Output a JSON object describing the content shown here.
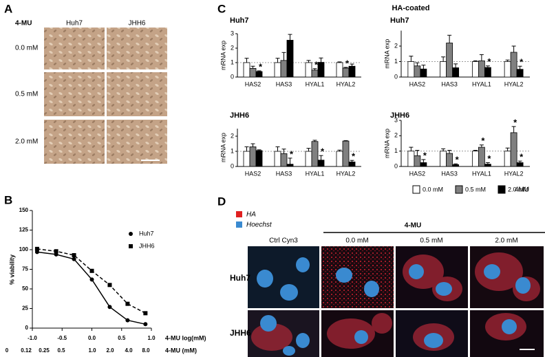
{
  "panel_labels": [
    "A",
    "B",
    "C",
    "D"
  ],
  "panel_a": {
    "treatment": "4-MU",
    "columns": [
      "Huh7",
      "JHH6"
    ],
    "rows": [
      "0.0 mM",
      "0.5 mM",
      "2.0 mM"
    ]
  },
  "chart_data": [
    {
      "type": "line",
      "ylabel": "% viability",
      "xlabel": "4-MU log(mM)",
      "xlabel2": "4-MU (mM)",
      "x2_labels": [
        "0",
        "0.12",
        "0.25",
        "0.5",
        "1.0",
        "2.0",
        "4.0",
        "8.0"
      ],
      "xlim": [
        -1,
        1
      ],
      "xticks": [
        {
          "value": -1,
          "label": "-1.0"
        },
        {
          "value": -0.5,
          "label": "-0.5"
        },
        {
          "value": 0,
          "label": "0.0"
        },
        {
          "value": 0.5,
          "label": "0.5"
        },
        {
          "value": 1,
          "label": "1.0"
        }
      ],
      "ylim": [
        0,
        150
      ],
      "yticks": [
        0,
        25,
        50,
        75,
        100,
        125,
        150
      ],
      "x": [
        -0.92,
        -0.6,
        -0.3,
        0,
        0.3,
        0.6,
        0.9
      ],
      "series": [
        {
          "name": "Huh7",
          "color": "#000000",
          "marker": "circle",
          "dash": "solid",
          "values": [
            97,
            94,
            88,
            62,
            27,
            10,
            5
          ]
        },
        {
          "name": "JHH6",
          "color": "#000000",
          "marker": "square",
          "dash": "dashed",
          "values": [
            101,
            98,
            93,
            73,
            55,
            31,
            19
          ]
        }
      ]
    },
    {
      "type": "bar",
      "title": "Huh7",
      "ylabel": "mRNA exp",
      "categories": [
        "HAS2",
        "HAS3",
        "HYAL1",
        "HYAL2"
      ],
      "ylim": [
        0,
        3
      ],
      "yticks": [
        0,
        1,
        2,
        3
      ],
      "reference_line": 1,
      "series": [
        {
          "name": "0.0 mM",
          "color": "#ffffff",
          "values": [
            1.0,
            1.0,
            1.0,
            1.0
          ],
          "errors": [
            0.3,
            0.3,
            0.15,
            0.05
          ],
          "stars": [
            null,
            null,
            null,
            null
          ]
        },
        {
          "name": "0.5 mM",
          "color": "#808080",
          "values": [
            0.6,
            1.15,
            0.48,
            0.62
          ],
          "errors": [
            0.15,
            0.55,
            0.1,
            0.05
          ],
          "stars": [
            null,
            null,
            "*",
            "*"
          ]
        },
        {
          "name": "2.0 mM",
          "color": "#000000",
          "values": [
            0.38,
            2.55,
            1.02,
            0.75
          ],
          "errors": [
            0.05,
            0.4,
            0.3,
            0.15
          ],
          "stars": [
            "*",
            null,
            null,
            null
          ]
        }
      ]
    },
    {
      "type": "bar",
      "title": "Huh7",
      "ylabel": "mRNA exp",
      "categories": [
        "HAS2",
        "HAS3",
        "HYAL1",
        "HYAL2"
      ],
      "ylim": [
        0,
        3
      ],
      "yticks": [
        0,
        1,
        2
      ],
      "reference_line": 1,
      "series": [
        {
          "name": "0.0 mM",
          "color": "#ffffff",
          "values": [
            1.0,
            1.0,
            1.0,
            1.0
          ],
          "errors": [
            0.35,
            0.3,
            0.05,
            0.1
          ],
          "stars": [
            null,
            null,
            null,
            null
          ]
        },
        {
          "name": "0.5 mM",
          "color": "#808080",
          "values": [
            0.72,
            2.2,
            1.05,
            1.6
          ],
          "errors": [
            0.2,
            0.5,
            0.4,
            0.4
          ],
          "stars": [
            null,
            null,
            null,
            null
          ]
        },
        {
          "name": "2.0 mM",
          "color": "#000000",
          "values": [
            0.52,
            0.6,
            0.62,
            0.5
          ],
          "errors": [
            0.25,
            0.25,
            0.1,
            0.2
          ],
          "stars": [
            null,
            null,
            "*",
            "*"
          ]
        }
      ]
    },
    {
      "type": "bar",
      "title": "JHH6",
      "ylabel": "mRNA exp",
      "categories": [
        "HAS2",
        "HAS3",
        "HYAL1",
        "HYAL2"
      ],
      "ylim": [
        0,
        2.5
      ],
      "yticks": [
        0,
        1,
        2
      ],
      "reference_line": 1,
      "series": [
        {
          "name": "0.0 mM",
          "color": "#ffffff",
          "values": [
            1.0,
            1.0,
            1.0,
            1.0
          ],
          "errors": [
            0.3,
            0.3,
            0.2,
            0.08
          ],
          "stars": [
            null,
            null,
            null,
            null
          ]
        },
        {
          "name": "0.5 mM",
          "color": "#808080",
          "values": [
            1.3,
            0.85,
            1.65,
            1.68
          ],
          "errors": [
            0.2,
            0.3,
            0.08,
            0.03
          ],
          "stars": [
            null,
            null,
            null,
            null
          ]
        },
        {
          "name": "2.0 mM",
          "color": "#000000",
          "values": [
            1.05,
            0.15,
            0.42,
            0.3
          ],
          "errors": [
            0.05,
            0.4,
            0.3,
            0.1
          ],
          "stars": [
            null,
            "*",
            "*",
            "*"
          ]
        }
      ]
    },
    {
      "type": "bar",
      "title": "JHH6",
      "ylabel": "mRNA exp",
      "categories": [
        "HAS2",
        "HAS3",
        "HYAL1",
        "HYAL2"
      ],
      "ylim": [
        0,
        3
      ],
      "yticks": [
        0,
        1,
        2,
        3
      ],
      "reference_line": 1,
      "series": [
        {
          "name": "0.0 mM",
          "color": "#ffffff",
          "values": [
            1.0,
            1.0,
            1.0,
            1.0
          ],
          "errors": [
            0.25,
            0.15,
            0.05,
            0.2
          ],
          "stars": [
            null,
            null,
            null,
            null
          ]
        },
        {
          "name": "0.5 mM",
          "color": "#808080",
          "values": [
            0.7,
            0.85,
            1.25,
            2.2
          ],
          "errors": [
            0.35,
            0.2,
            0.15,
            0.4
          ],
          "stars": [
            null,
            null,
            "*",
            "*"
          ]
        },
        {
          "name": "2.0 mM",
          "color": "#000000",
          "values": [
            0.25,
            0.12,
            0.15,
            0.25
          ],
          "errors": [
            0.2,
            0.05,
            0.1,
            0.1
          ],
          "stars": [
            "*",
            "*",
            "*",
            "*"
          ]
        }
      ]
    }
  ],
  "panel_c": {
    "title": "HA-coated",
    "legend_note": "4MU"
  },
  "panel_d": {
    "legend": [
      "HA",
      "Hoechst"
    ],
    "treatment": "4-MU",
    "columns": [
      "Ctrl Cyn3",
      "0.0 mM",
      "0.5 mM",
      "2.0 mM"
    ],
    "rows": [
      "Huh7",
      "JHH6"
    ]
  }
}
